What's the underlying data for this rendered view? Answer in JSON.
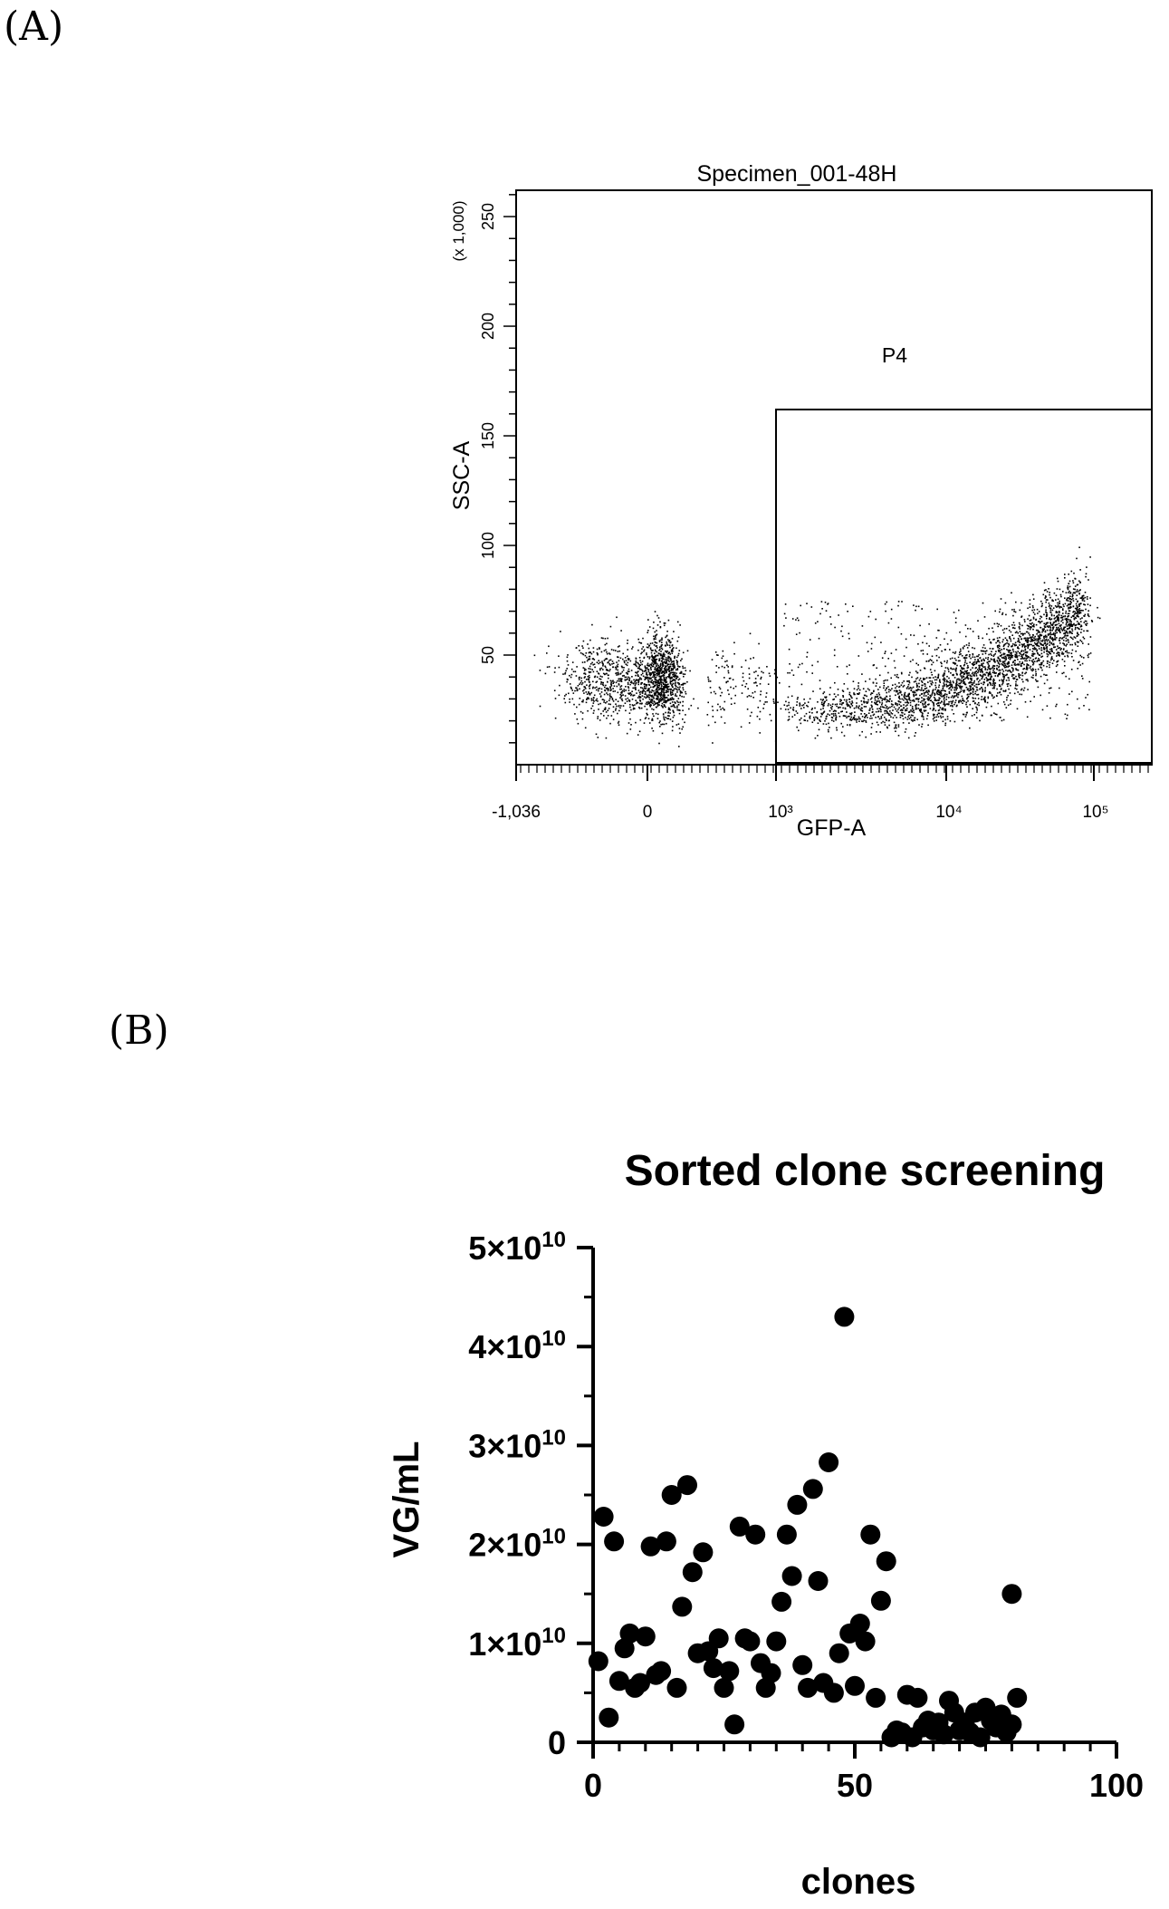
{
  "panels": {
    "a_label": "(A)",
    "b_label": "(B)"
  },
  "chart_data": [
    {
      "type": "scatter",
      "title": "Specimen_001-48H",
      "xlabel": "GFP-A",
      "ylabel": "SSC-A",
      "y_multiplier_label": "(x 1,000)",
      "x_tick_labels": [
        "-1,036",
        "0",
        "10³",
        "10⁴",
        "10⁵"
      ],
      "y_tick_labels": [
        "50",
        "100",
        "150",
        "200",
        "250"
      ],
      "ylim": [
        0,
        262
      ],
      "gate": {
        "name": "P4",
        "x_range": [
          "10³",
          "max"
        ],
        "y_range": [
          0,
          162
        ]
      },
      "populations": [
        {
          "name": "",
          "description_only": false,
          "x_center": 0,
          "y_center": 40
        },
        {
          "name": "",
          "description_only": false,
          "x_center": "3x10⁴",
          "y_center": 45
        }
      ]
    },
    {
      "type": "scatter",
      "title": "Sorted clone screening",
      "xlabel": "clones",
      "ylabel": "VG/mL",
      "xlim": [
        0,
        100
      ],
      "ylim": [
        0,
        50000000000
      ],
      "x_ticks": [
        0,
        50,
        100
      ],
      "x_tick_labels": [
        "0",
        "50",
        "100"
      ],
      "y_ticks": [
        0,
        10000000000,
        20000000000,
        30000000000,
        40000000000,
        50000000000
      ],
      "y_tick_labels": [
        {
          "base": "0",
          "exp": ""
        },
        {
          "base": "1×10",
          "exp": "10"
        },
        {
          "base": "2×10",
          "exp": "10"
        },
        {
          "base": "3×10",
          "exp": "10"
        },
        {
          "base": "4×10",
          "exp": "10"
        },
        {
          "base": "5×10",
          "exp": "10"
        }
      ],
      "unit_scale_note": "y values in units of 1e10 VG/mL",
      "points": [
        [
          1,
          0.82
        ],
        [
          2,
          2.28
        ],
        [
          3,
          0.25
        ],
        [
          4,
          2.03
        ],
        [
          5,
          0.62
        ],
        [
          6,
          0.95
        ],
        [
          7,
          1.1
        ],
        [
          8,
          0.55
        ],
        [
          9,
          0.6
        ],
        [
          10,
          1.07
        ],
        [
          11,
          1.98
        ],
        [
          12,
          0.68
        ],
        [
          13,
          0.72
        ],
        [
          14,
          2.03
        ],
        [
          15,
          2.5
        ],
        [
          16,
          0.55
        ],
        [
          17,
          1.37
        ],
        [
          18,
          2.6
        ],
        [
          19,
          1.72
        ],
        [
          20,
          0.9
        ],
        [
          21,
          1.92
        ],
        [
          22,
          0.92
        ],
        [
          23,
          0.75
        ],
        [
          24,
          1.05
        ],
        [
          25,
          0.55
        ],
        [
          26,
          0.72
        ],
        [
          27,
          0.18
        ],
        [
          28,
          2.18
        ],
        [
          29,
          1.05
        ],
        [
          30,
          1.02
        ],
        [
          31,
          2.1
        ],
        [
          32,
          0.8
        ],
        [
          33,
          0.55
        ],
        [
          34,
          0.7
        ],
        [
          35,
          1.02
        ],
        [
          36,
          1.42
        ],
        [
          37,
          2.1
        ],
        [
          38,
          1.68
        ],
        [
          39,
          2.4
        ],
        [
          40,
          0.78
        ],
        [
          41,
          0.55
        ],
        [
          42,
          2.56
        ],
        [
          43,
          1.63
        ],
        [
          44,
          0.6
        ],
        [
          45,
          2.83
        ],
        [
          46,
          0.5
        ],
        [
          47,
          0.9
        ],
        [
          48,
          4.3
        ],
        [
          49,
          1.1
        ],
        [
          50,
          0.57
        ],
        [
          51,
          1.2
        ],
        [
          52,
          1.02
        ],
        [
          53,
          2.1
        ],
        [
          54,
          0.45
        ],
        [
          55,
          1.43
        ],
        [
          56,
          1.83
        ],
        [
          57,
          0.05
        ],
        [
          58,
          0.12
        ],
        [
          59,
          0.1
        ],
        [
          60,
          0.48
        ],
        [
          61,
          0.05
        ],
        [
          62,
          0.45
        ],
        [
          63,
          0.15
        ],
        [
          64,
          0.22
        ],
        [
          65,
          0.12
        ],
        [
          66,
          0.2
        ],
        [
          67,
          0.08
        ],
        [
          68,
          0.42
        ],
        [
          69,
          0.3
        ],
        [
          70,
          0.12
        ],
        [
          71,
          0.2
        ],
        [
          72,
          0.1
        ],
        [
          73,
          0.3
        ],
        [
          74,
          0.05
        ],
        [
          75,
          0.35
        ],
        [
          76,
          0.22
        ],
        [
          77,
          0.15
        ],
        [
          78,
          0.28
        ],
        [
          79,
          0.1
        ],
        [
          80,
          0.18
        ],
        [
          80,
          1.5
        ],
        [
          81,
          0.45
        ]
      ]
    }
  ]
}
